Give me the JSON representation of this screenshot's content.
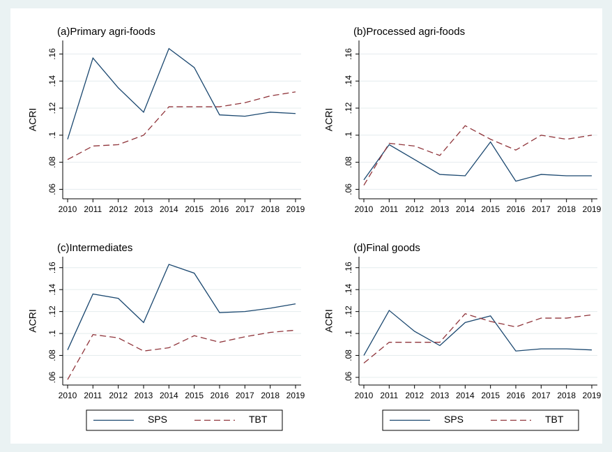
{
  "chart_data": [
    {
      "type": "line",
      "title": "(a)Primary agri-foods",
      "y_label": "ACRI",
      "categories": [
        "2010",
        "2011",
        "2012",
        "2013",
        "2014",
        "2015",
        "2016",
        "2017",
        "2018",
        "2019"
      ],
      "series": [
        {
          "name": "SPS",
          "color": "#1a476f",
          "style": "solid",
          "values": [
            0.097,
            0.157,
            0.135,
            0.117,
            0.164,
            0.15,
            0.115,
            0.114,
            0.117,
            0.116
          ]
        },
        {
          "name": "TBT",
          "color": "#90353b",
          "style": "dashed",
          "values": [
            0.082,
            0.092,
            0.093,
            0.1,
            0.121,
            0.121,
            0.121,
            0.124,
            0.129,
            0.132
          ]
        }
      ],
      "ylim": [
        0.053,
        0.17
      ],
      "yticks": [
        {
          "value": 0.06,
          "label": ".06"
        },
        {
          "value": 0.08,
          "label": ".08"
        },
        {
          "value": 0.1,
          "label": ".1"
        },
        {
          "value": 0.12,
          "label": ".12"
        },
        {
          "value": 0.14,
          "label": ".14"
        },
        {
          "value": 0.16,
          "label": ".16"
        }
      ],
      "grid": true
    },
    {
      "type": "line",
      "title": "(b)Processed agri-foods",
      "y_label": "ACRI",
      "categories": [
        "2010",
        "2011",
        "2012",
        "2013",
        "2014",
        "2015",
        "2016",
        "2017",
        "2018",
        "2019"
      ],
      "series": [
        {
          "name": "SPS",
          "color": "#1a476f",
          "style": "solid",
          "values": [
            0.067,
            0.093,
            0.082,
            0.071,
            0.07,
            0.095,
            0.066,
            0.071,
            0.07,
            0.07
          ]
        },
        {
          "name": "TBT",
          "color": "#90353b",
          "style": "dashed",
          "values": [
            0.063,
            0.094,
            0.092,
            0.085,
            0.107,
            0.097,
            0.089,
            0.1,
            0.097,
            0.1
          ]
        }
      ],
      "ylim": [
        0.053,
        0.17
      ],
      "yticks": [
        {
          "value": 0.06,
          "label": ".06"
        },
        {
          "value": 0.08,
          "label": ".08"
        },
        {
          "value": 0.1,
          "label": ".1"
        },
        {
          "value": 0.12,
          "label": ".12"
        },
        {
          "value": 0.14,
          "label": ".14"
        },
        {
          "value": 0.16,
          "label": ".16"
        }
      ],
      "grid": true
    },
    {
      "type": "line",
      "title": "(c)Intermediates",
      "y_label": "ACRI",
      "categories": [
        "2010",
        "2011",
        "2012",
        "2013",
        "2014",
        "2015",
        "2016",
        "2017",
        "2018",
        "2019"
      ],
      "series": [
        {
          "name": "SPS",
          "color": "#1a476f",
          "style": "solid",
          "values": [
            0.085,
            0.136,
            0.132,
            0.11,
            0.163,
            0.155,
            0.119,
            0.12,
            0.123,
            0.127
          ]
        },
        {
          "name": "TBT",
          "color": "#90353b",
          "style": "dashed",
          "values": [
            0.058,
            0.099,
            0.096,
            0.084,
            0.087,
            0.098,
            0.092,
            0.097,
            0.101,
            0.103
          ]
        }
      ],
      "ylim": [
        0.053,
        0.17
      ],
      "yticks": [
        {
          "value": 0.06,
          "label": ".06"
        },
        {
          "value": 0.08,
          "label": ".08"
        },
        {
          "value": 0.1,
          "label": ".1"
        },
        {
          "value": 0.12,
          "label": ".12"
        },
        {
          "value": 0.14,
          "label": ".14"
        },
        {
          "value": 0.16,
          "label": ".16"
        }
      ],
      "grid": true,
      "legend": "bottom"
    },
    {
      "type": "line",
      "title": "(d)Final goods",
      "y_label": "ACRI",
      "categories": [
        "2010",
        "2011",
        "2012",
        "2013",
        "2014",
        "2015",
        "2016",
        "2017",
        "2018",
        "2019"
      ],
      "series": [
        {
          "name": "SPS",
          "color": "#1a476f",
          "style": "solid",
          "values": [
            0.08,
            0.121,
            0.102,
            0.089,
            0.11,
            0.116,
            0.084,
            0.086,
            0.086,
            0.085
          ]
        },
        {
          "name": "TBT",
          "color": "#90353b",
          "style": "dashed",
          "values": [
            0.073,
            0.092,
            0.092,
            0.092,
            0.118,
            0.111,
            0.106,
            0.114,
            0.114,
            0.117
          ]
        }
      ],
      "ylim": [
        0.053,
        0.17
      ],
      "yticks": [
        {
          "value": 0.06,
          "label": ".06"
        },
        {
          "value": 0.08,
          "label": ".08"
        },
        {
          "value": 0.1,
          "label": ".1"
        },
        {
          "value": 0.12,
          "label": ".12"
        },
        {
          "value": 0.14,
          "label": ".14"
        },
        {
          "value": 0.16,
          "label": ".16"
        }
      ],
      "grid": true,
      "legend": "bottom"
    }
  ]
}
